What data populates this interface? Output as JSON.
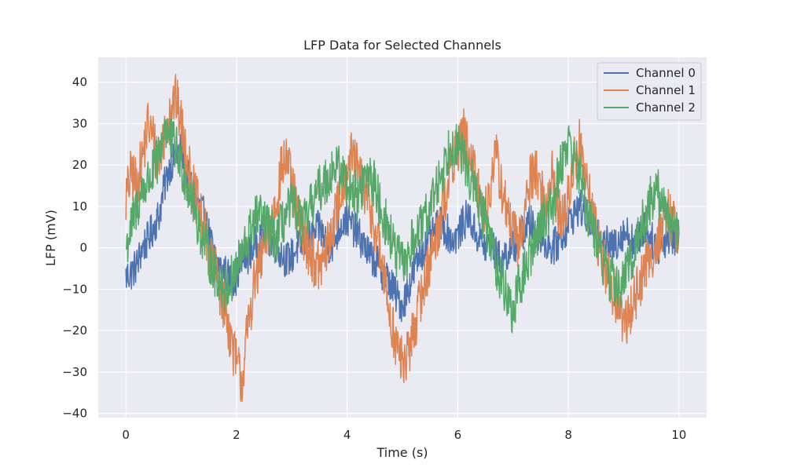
{
  "chart_data": {
    "type": "line",
    "title": "LFP Data for Selected Channels",
    "xlabel": "Time (s)",
    "ylabel": "LFP (mV)",
    "xlim": [
      -0.5,
      10.5
    ],
    "ylim": [
      -41,
      46
    ],
    "xticks": [
      0,
      2,
      4,
      6,
      8,
      10
    ],
    "yticks": [
      -40,
      -30,
      -20,
      -10,
      0,
      10,
      20,
      30,
      40
    ],
    "xtick_labels": [
      "0",
      "2",
      "4",
      "6",
      "8",
      "10"
    ],
    "ytick_labels": [
      "−40",
      "−30",
      "−20",
      "−10",
      "0",
      "10",
      "20",
      "30",
      "40"
    ],
    "grid": true,
    "legend_position": "upper right",
    "background": "#eaeaf2",
    "series": [
      {
        "name": "Channel 0",
        "color": "#4c72b0",
        "x": [
          0,
          0.1,
          0.2,
          0.3,
          0.4,
          0.5,
          0.6,
          0.7,
          0.8,
          0.9,
          1.0,
          1.1,
          1.2,
          1.3,
          1.4,
          1.5,
          1.6,
          1.7,
          1.8,
          1.9,
          2.0,
          2.1,
          2.2,
          2.3,
          2.4,
          2.5,
          2.6,
          2.7,
          2.8,
          2.9,
          3.0,
          3.1,
          3.2,
          3.3,
          3.4,
          3.5,
          3.6,
          3.7,
          3.8,
          3.9,
          4.0,
          4.1,
          4.2,
          4.3,
          4.4,
          4.5,
          4.6,
          4.7,
          4.8,
          4.9,
          5.0,
          5.1,
          5.2,
          5.3,
          5.4,
          5.5,
          5.6,
          5.7,
          5.8,
          5.9,
          6.0,
          6.1,
          6.2,
          6.3,
          6.4,
          6.5,
          6.6,
          6.7,
          6.8,
          6.9,
          7.0,
          7.1,
          7.2,
          7.3,
          7.4,
          7.5,
          7.6,
          7.7,
          7.8,
          7.9,
          8.0,
          8.1,
          8.2,
          8.3,
          8.4,
          8.5,
          8.6,
          8.7,
          8.8,
          8.9,
          9.0,
          9.1,
          9.2,
          9.3,
          9.4,
          9.5,
          9.6,
          9.7,
          9.8,
          9.9,
          10.0
        ],
        "y": [
          -7,
          -6,
          -4,
          0,
          2,
          5,
          8,
          15,
          20,
          22,
          24,
          18,
          14,
          10,
          8,
          3,
          -2,
          -5,
          -6,
          -8,
          -7,
          -3,
          -2,
          0,
          2,
          4,
          2,
          1,
          -1,
          -3,
          -2,
          0,
          1,
          2,
          3,
          5,
          2,
          0,
          3,
          6,
          7,
          5,
          3,
          1,
          -2,
          -3,
          -5,
          -7,
          -9,
          -12,
          -14,
          -10,
          -6,
          -2,
          0,
          2,
          4,
          6,
          4,
          2,
          3,
          6,
          8,
          4,
          2,
          0,
          1,
          -2,
          -3,
          -1,
          0,
          2,
          4,
          6,
          5,
          3,
          1,
          0,
          1,
          3,
          6,
          8,
          10,
          8,
          6,
          5,
          3,
          1,
          0,
          2,
          4,
          3,
          1,
          3,
          5,
          2,
          0,
          1,
          3,
          2,
          4
        ]
      },
      {
        "name": "Channel 1",
        "color": "#dd8452",
        "x": [
          0,
          0.1,
          0.2,
          0.3,
          0.4,
          0.5,
          0.6,
          0.7,
          0.8,
          0.9,
          1.0,
          1.1,
          1.2,
          1.3,
          1.4,
          1.5,
          1.6,
          1.7,
          1.8,
          1.9,
          2.0,
          2.1,
          2.2,
          2.3,
          2.4,
          2.5,
          2.6,
          2.7,
          2.8,
          2.9,
          3.0,
          3.1,
          3.2,
          3.3,
          3.4,
          3.5,
          3.6,
          3.7,
          3.8,
          3.9,
          4.0,
          4.1,
          4.2,
          4.3,
          4.4,
          4.5,
          4.6,
          4.7,
          4.8,
          4.9,
          5.0,
          5.1,
          5.2,
          5.3,
          5.4,
          5.5,
          5.6,
          5.7,
          5.8,
          5.9,
          6.0,
          6.1,
          6.2,
          6.3,
          6.4,
          6.5,
          6.6,
          6.7,
          6.8,
          6.9,
          7.0,
          7.1,
          7.2,
          7.3,
          7.4,
          7.5,
          7.6,
          7.7,
          7.8,
          7.9,
          8.0,
          8.1,
          8.2,
          8.3,
          8.4,
          8.5,
          8.6,
          8.7,
          8.8,
          8.9,
          9.0,
          9.1,
          9.2,
          9.3,
          9.4,
          9.5,
          9.6,
          9.7,
          9.8,
          9.9,
          10.0
        ],
        "y": [
          12,
          18,
          15,
          22,
          30,
          26,
          20,
          28,
          34,
          36,
          30,
          22,
          15,
          10,
          5,
          0,
          -5,
          -10,
          -15,
          -22,
          -28,
          -32,
          -20,
          -10,
          -5,
          0,
          5,
          10,
          18,
          22,
          15,
          8,
          4,
          0,
          -3,
          -5,
          -2,
          3,
          8,
          15,
          20,
          22,
          18,
          14,
          10,
          5,
          -2,
          -10,
          -18,
          -24,
          -28,
          -26,
          -20,
          -14,
          -8,
          -3,
          2,
          8,
          14,
          20,
          24,
          28,
          22,
          18,
          12,
          8,
          16,
          22,
          14,
          8,
          4,
          0,
          8,
          16,
          20,
          14,
          10,
          18,
          10,
          6,
          12,
          20,
          26,
          18,
          10,
          4,
          -2,
          -6,
          -10,
          -14,
          -18,
          -16,
          -12,
          -8,
          -4,
          -2,
          2,
          4,
          8,
          6,
          4
        ]
      },
      {
        "name": "Channel 2",
        "color": "#55a868",
        "x": [
          0,
          0.1,
          0.2,
          0.3,
          0.4,
          0.5,
          0.6,
          0.7,
          0.8,
          0.9,
          1.0,
          1.1,
          1.2,
          1.3,
          1.4,
          1.5,
          1.6,
          1.7,
          1.8,
          1.9,
          2.0,
          2.1,
          2.2,
          2.3,
          2.4,
          2.5,
          2.6,
          2.7,
          2.8,
          2.9,
          3.0,
          3.1,
          3.2,
          3.3,
          3.4,
          3.5,
          3.6,
          3.7,
          3.8,
          3.9,
          4.0,
          4.1,
          4.2,
          4.3,
          4.4,
          4.5,
          4.6,
          4.7,
          4.8,
          4.9,
          5.0,
          5.1,
          5.2,
          5.3,
          5.4,
          5.5,
          5.6,
          5.7,
          5.8,
          5.9,
          6.0,
          6.1,
          6.2,
          6.3,
          6.4,
          6.5,
          6.6,
          6.7,
          6.8,
          6.9,
          7.0,
          7.1,
          7.2,
          7.3,
          7.4,
          7.5,
          7.6,
          7.7,
          7.8,
          7.9,
          8.0,
          8.1,
          8.2,
          8.3,
          8.4,
          8.5,
          8.6,
          8.7,
          8.8,
          8.9,
          9.0,
          9.1,
          9.2,
          9.3,
          9.4,
          9.5,
          9.6,
          9.7,
          9.8,
          9.9,
          10.0
        ],
        "y": [
          0,
          5,
          10,
          14,
          16,
          18,
          22,
          30,
          26,
          24,
          20,
          16,
          12,
          6,
          2,
          -2,
          -6,
          -8,
          -10,
          -8,
          -5,
          -2,
          2,
          6,
          8,
          6,
          4,
          2,
          5,
          8,
          10,
          8,
          5,
          8,
          12,
          14,
          16,
          18,
          20,
          18,
          16,
          14,
          12,
          16,
          18,
          15,
          10,
          6,
          2,
          -2,
          -4,
          -2,
          2,
          4,
          6,
          10,
          14,
          18,
          22,
          26,
          24,
          22,
          18,
          14,
          10,
          6,
          2,
          -4,
          -8,
          -12,
          -16,
          -10,
          -6,
          -2,
          2,
          6,
          8,
          10,
          16,
          22,
          26,
          22,
          18,
          12,
          6,
          2,
          -2,
          -6,
          -8,
          -10,
          -8,
          -4,
          0,
          4,
          8,
          12,
          14,
          10,
          8,
          6,
          4
        ]
      }
    ]
  }
}
